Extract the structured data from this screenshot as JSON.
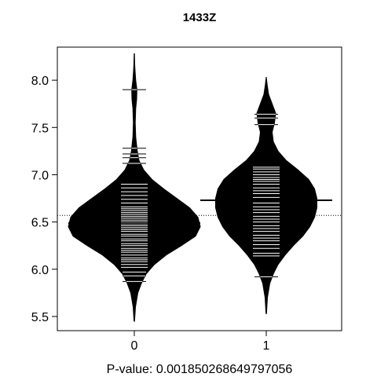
{
  "chart_data": {
    "type": "beanplot",
    "title": "1433Z",
    "xlabel": "P-value: 0.00185026864979705​6",
    "categories": [
      "0",
      "1"
    ],
    "y_ticks": [
      "5.5",
      "6.0",
      "6.5",
      "7.0",
      "7.5",
      "8.0"
    ],
    "ylim": [
      5.35,
      8.35
    ],
    "overall_mean": 6.57,
    "grid": false,
    "colors": {
      "bean_fill": "#000000",
      "bean_lines": "#ffffff",
      "axes": "#000000"
    },
    "series": [
      {
        "category": "0",
        "mean": 6.49,
        "min": 5.45,
        "max": 8.28,
        "density": [
          [
            5.45,
            0.002
          ],
          [
            5.6,
            0.01
          ],
          [
            5.75,
            0.03
          ],
          [
            5.85,
            0.06
          ],
          [
            5.95,
            0.1
          ],
          [
            6.05,
            0.17
          ],
          [
            6.15,
            0.27
          ],
          [
            6.25,
            0.4
          ],
          [
            6.35,
            0.52
          ],
          [
            6.45,
            0.56
          ],
          [
            6.55,
            0.54
          ],
          [
            6.65,
            0.47
          ],
          [
            6.75,
            0.36
          ],
          [
            6.85,
            0.25
          ],
          [
            6.95,
            0.15
          ],
          [
            7.05,
            0.08
          ],
          [
            7.15,
            0.04
          ],
          [
            7.25,
            0.025
          ],
          [
            7.4,
            0.012
          ],
          [
            7.55,
            0.008
          ],
          [
            7.7,
            0.012
          ],
          [
            7.8,
            0.02
          ],
          [
            7.9,
            0.022
          ],
          [
            8.0,
            0.012
          ],
          [
            8.15,
            0.004
          ],
          [
            8.28,
            0.001
          ]
        ],
        "points": [
          5.87,
          5.93,
          5.97,
          6.02,
          6.05,
          6.08,
          6.1,
          6.12,
          6.15,
          6.18,
          6.2,
          6.22,
          6.25,
          6.27,
          6.3,
          6.32,
          6.35,
          6.37,
          6.4,
          6.42,
          6.44,
          6.46,
          6.48,
          6.5,
          6.52,
          6.54,
          6.56,
          6.58,
          6.6,
          6.62,
          6.64,
          6.66,
          6.7,
          6.74,
          6.78,
          6.82,
          6.86,
          6.9,
          7.12,
          7.18,
          7.22,
          7.28,
          7.9
        ]
      },
      {
        "category": "1",
        "mean": 6.73,
        "min": 5.53,
        "max": 8.03,
        "density": [
          [
            5.53,
            0.002
          ],
          [
            5.7,
            0.01
          ],
          [
            5.85,
            0.03
          ],
          [
            5.95,
            0.06
          ],
          [
            6.05,
            0.1
          ],
          [
            6.15,
            0.16
          ],
          [
            6.25,
            0.23
          ],
          [
            6.35,
            0.31
          ],
          [
            6.45,
            0.37
          ],
          [
            6.55,
            0.41
          ],
          [
            6.65,
            0.43
          ],
          [
            6.75,
            0.43
          ],
          [
            6.85,
            0.41
          ],
          [
            6.95,
            0.36
          ],
          [
            7.05,
            0.27
          ],
          [
            7.15,
            0.17
          ],
          [
            7.25,
            0.1
          ],
          [
            7.35,
            0.06
          ],
          [
            7.45,
            0.05
          ],
          [
            7.55,
            0.07
          ],
          [
            7.65,
            0.08
          ],
          [
            7.75,
            0.05
          ],
          [
            7.85,
            0.02
          ],
          [
            7.95,
            0.008
          ],
          [
            8.03,
            0.001
          ]
        ],
        "points": [
          5.92,
          6.14,
          6.17,
          6.22,
          6.26,
          6.3,
          6.33,
          6.36,
          6.4,
          6.43,
          6.46,
          6.5,
          6.53,
          6.56,
          6.6,
          6.63,
          6.66,
          6.7,
          6.73,
          6.76,
          6.8,
          6.83,
          6.86,
          6.9,
          6.93,
          6.95,
          6.97,
          7.0,
          7.03,
          7.06,
          7.08,
          7.53,
          7.6,
          7.64
        ]
      }
    ]
  }
}
